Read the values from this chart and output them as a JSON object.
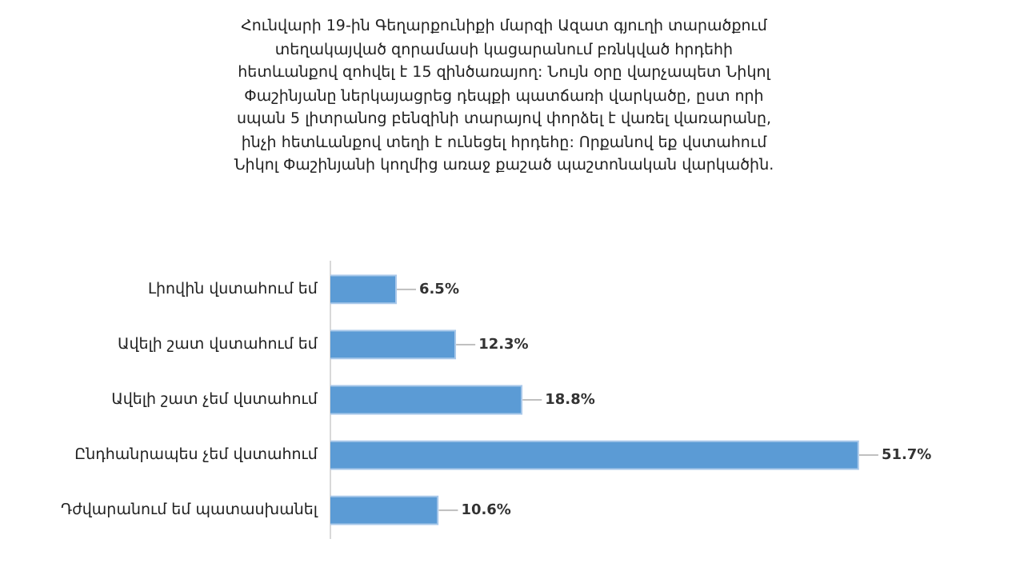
{
  "chart_data": {
    "type": "bar",
    "orientation": "horizontal",
    "title": "Հունվարի 19-ին Գեղարքունիքի մարզի Ազատ գյուղի տարածքում տեղակայված զորամասի կացարանում բռնկված հրդեհի հետևանքով զոհվել է 15 զինծառայող: Նույն օրը վարչապետ Նիկոլ Փաշինյանը ներկայացրեց դեպքի պատճառի վարկածը, ըստ որի սպան 5 լիտրանոց բենզինի տարայով փորձել է վառել վառարանը, ինչի հետևանքով տեղի է ունեցել հրդեհը: Որքանով եք վստահում Նիկոլ Փաշինյանի կողմից առաջ քաշած պաշտոնական վարկածին.",
    "categories": [
      "Լիովին վստահում եմ",
      "Ավելի շատ վստահում եմ",
      "Ավելի շատ չեմ վստահում",
      "Ընդհանրապես չեմ վստահում",
      "Դժվարանում եմ պատասխանել"
    ],
    "values": [
      6.5,
      12.3,
      18.8,
      51.7,
      10.6
    ],
    "value_labels": [
      "6.5%",
      "12.3%",
      "18.8%",
      "51.7%",
      "10.6%"
    ],
    "color": "#5b9bd5",
    "tick_labels": "y"
  }
}
